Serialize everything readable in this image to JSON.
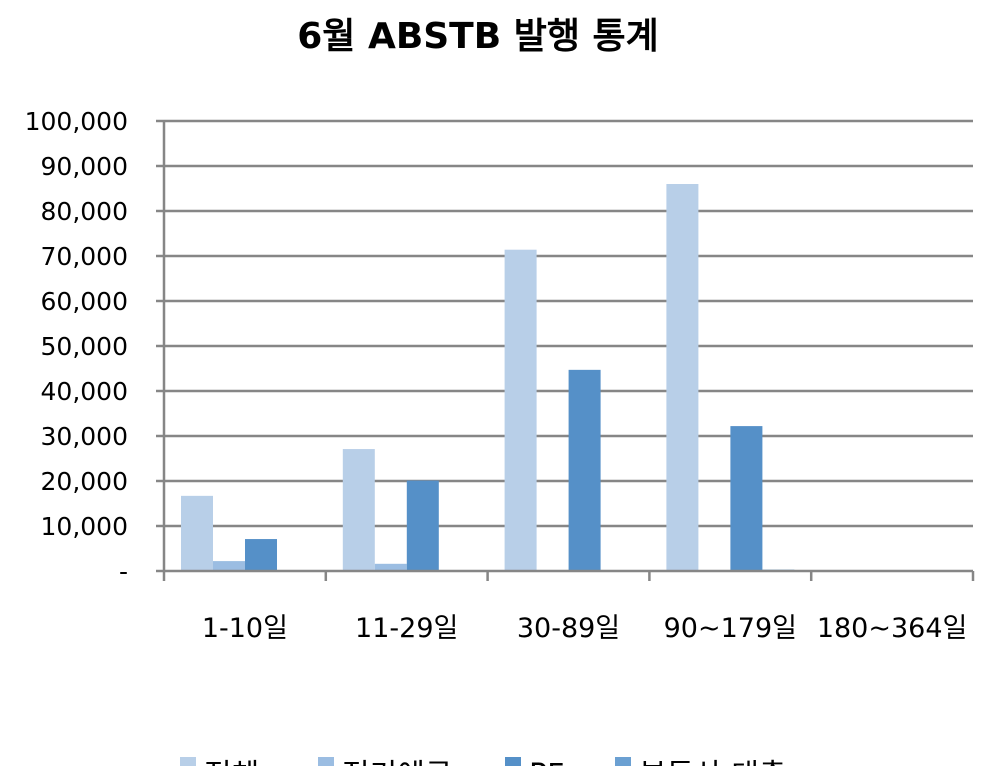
{
  "chart_data": {
    "type": "bar",
    "title": "6월 ABSTB 발행 통계",
    "xlabel": "",
    "ylabel": "",
    "ylim": [
      0,
      100000
    ],
    "yticks": [
      {
        "value": 0,
        "label": "-"
      },
      {
        "value": 10000,
        "label": "10,000"
      },
      {
        "value": 20000,
        "label": "20,000"
      },
      {
        "value": 30000,
        "label": "30,000"
      },
      {
        "value": 40000,
        "label": "40,000"
      },
      {
        "value": 50000,
        "label": "50,000"
      },
      {
        "value": 60000,
        "label": "60,000"
      },
      {
        "value": 70000,
        "label": "70,000"
      },
      {
        "value": 80000,
        "label": "80,000"
      },
      {
        "value": 90000,
        "label": "90,000"
      },
      {
        "value": 100000,
        "label": "100,000"
      }
    ],
    "grid": true,
    "legend_position": "bottom",
    "categories": [
      "1-10일",
      "11-29일",
      "30-89일",
      "90~179일",
      "180~364일"
    ],
    "series": [
      {
        "name": "전체",
        "color": "#b8cfe8",
        "values": [
          16700,
          27100,
          71400,
          86000,
          0
        ]
      },
      {
        "name": "정기예금",
        "color": "#9bbde2",
        "values": [
          2200,
          1600,
          0,
          0,
          0
        ]
      },
      {
        "name": "PF",
        "color": "#5590c8",
        "values": [
          7100,
          20100,
          44700,
          32200,
          0
        ]
      },
      {
        "name": "부동산 대출",
        "color": "#6ba0d2",
        "values": [
          0,
          0,
          0,
          300,
          0
        ]
      }
    ]
  }
}
